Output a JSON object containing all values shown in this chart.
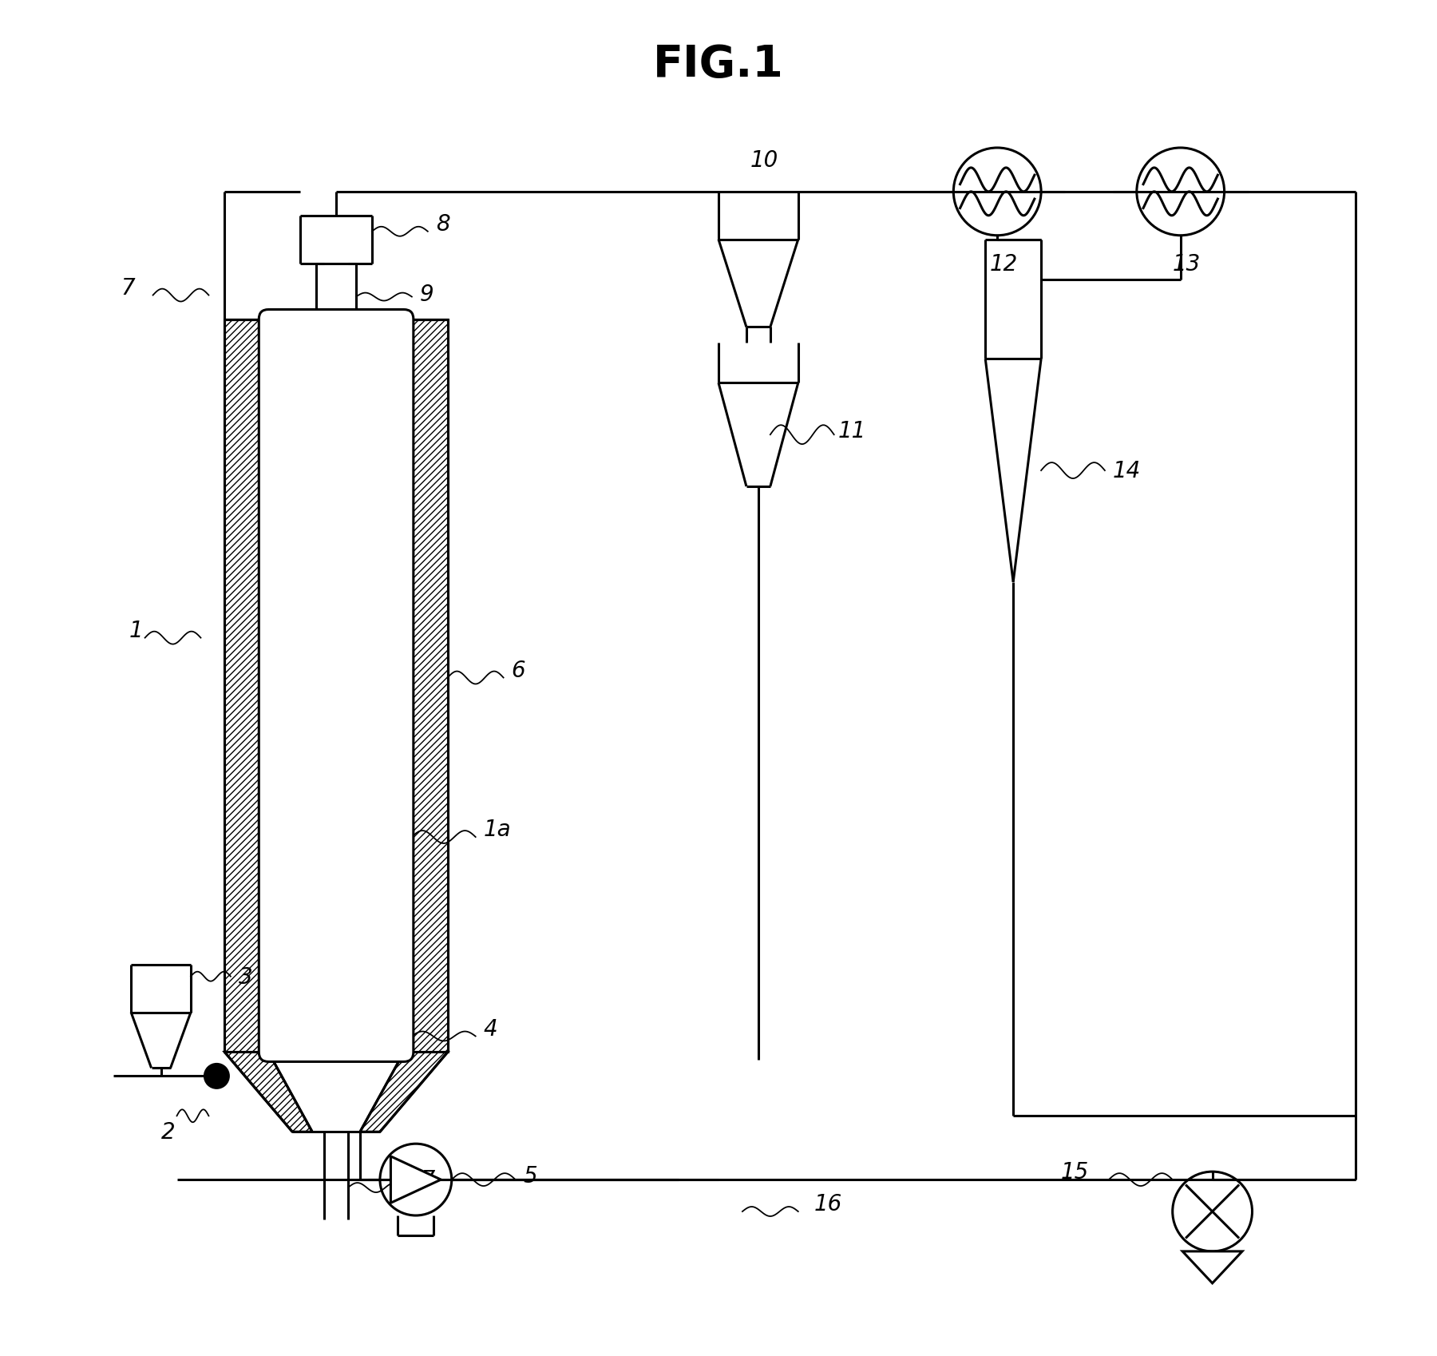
{
  "title": "FIG.1",
  "title_fontsize": 40,
  "title_fontweight": "bold",
  "bg_color": "#ffffff",
  "lc": "#000000",
  "lw": 2.2,
  "lw_thin": 1.5,
  "fig_width": 18.0,
  "fig_height": 16.99,
  "label_fontsize": 20
}
